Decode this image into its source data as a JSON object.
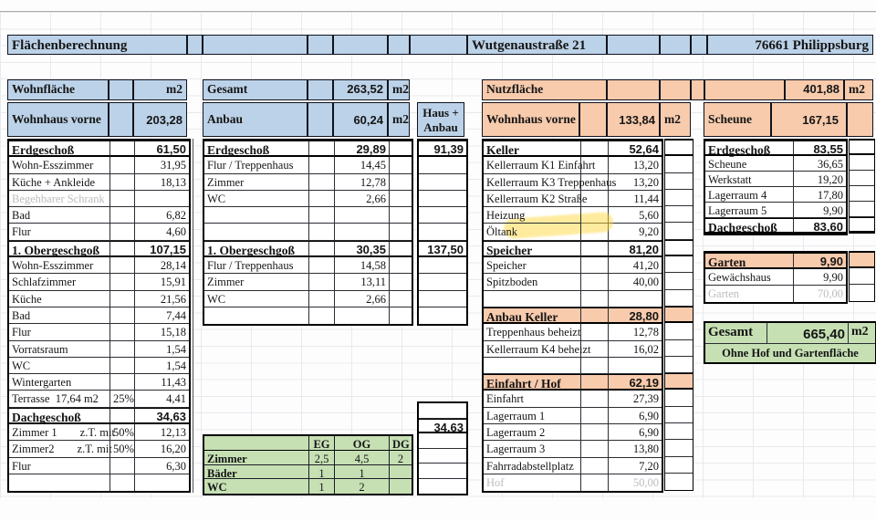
{
  "top": {
    "title": "Flächenberechnung",
    "street": "Wutgenaustraße 21",
    "city": "76661 Philippsburg"
  },
  "wohn": {
    "label": "Wohnfläche",
    "unit": "m2",
    "haus_label": "Wohnhaus vorne",
    "haus_value": "203,28"
  },
  "gesamt_row": {
    "label": "Gesamt",
    "value": "263,52",
    "unit": "m2"
  },
  "anbau": {
    "label": "Anbau",
    "value": "60,24",
    "unit": "m2",
    "haus_anbau": "Haus +\nAnbau"
  },
  "nutz": {
    "label": "Nutzfläche",
    "value": "401,88",
    "unit": "m2",
    "haus_label": "Wohnhaus vorne",
    "haus_value": "133,84",
    "haus_unit": "m2",
    "scheune_label": "Scheune",
    "scheune_value": "167,15"
  },
  "gesamt_box": {
    "label": "Gesamt",
    "value": "665,40",
    "unit": "m2",
    "note": "Ohne Hof und Gartenfläche"
  },
  "colors": {
    "blue": "#bcd2e8",
    "peach": "#f8cbad",
    "green": "#c6e0b4",
    "highlight": "#ffd83c"
  },
  "tables": {
    "left_main": {
      "rows": [
        {
          "t": "header",
          "c": [
            "Erdgeschoß",
            "",
            "61,50"
          ]
        },
        {
          "t": "item",
          "c": [
            "Wohn-Esszimmer",
            "",
            "31,95"
          ]
        },
        {
          "t": "item",
          "c": [
            "Küche + Ankleide",
            "",
            "18,13"
          ]
        },
        {
          "t": "muted",
          "c": [
            "Begehbarer Schrank",
            "",
            ""
          ]
        },
        {
          "t": "item",
          "c": [
            "Bad",
            "",
            "6,82"
          ]
        },
        {
          "t": "item",
          "c": [
            "Flur",
            "",
            "4,60"
          ]
        },
        {
          "t": "header",
          "c": [
            "1. Obergeschgoß",
            "",
            "107,15"
          ]
        },
        {
          "t": "item",
          "c": [
            "Wohn-Esszimmer",
            "",
            "28,14"
          ]
        },
        {
          "t": "item",
          "c": [
            "Schlafzimmer",
            "",
            "15,91"
          ]
        },
        {
          "t": "item",
          "c": [
            "Küche",
            "",
            "21,56"
          ]
        },
        {
          "t": "item",
          "c": [
            "Bad",
            "",
            "7,44"
          ]
        },
        {
          "t": "item",
          "c": [
            "Flur",
            "",
            "15,18"
          ]
        },
        {
          "t": "item",
          "c": [
            "Vorratsraum",
            "",
            "1,54"
          ]
        },
        {
          "t": "item",
          "c": [
            "WC",
            "",
            "1,54"
          ]
        },
        {
          "t": "item",
          "c": [
            "Wintergarten",
            "",
            "11,43"
          ]
        },
        {
          "t": "item",
          "c": [
            "Terrasse  17,64 m2",
            "25%",
            "4,41"
          ]
        },
        {
          "t": "header",
          "c": [
            "Dachgeschoß",
            "",
            "34,63"
          ]
        },
        {
          "t": "item",
          "c": [
            "Zimmer 1        z.T. mit",
            "50%",
            "12,13"
          ]
        },
        {
          "t": "item",
          "c": [
            "Zimmer2        z.T. mit",
            "50%",
            "16,20"
          ]
        },
        {
          "t": "item",
          "c": [
            "Flur",
            "",
            "6,30"
          ]
        },
        {
          "t": "item",
          "c": [
            "",
            "",
            ""
          ]
        }
      ]
    },
    "mid_main": {
      "rows": [
        {
          "t": "header",
          "c": [
            "Erdgeschoß",
            "",
            "29,89",
            ""
          ]
        },
        {
          "t": "item",
          "c": [
            "Flur / Treppenhaus",
            "",
            "14,45",
            ""
          ]
        },
        {
          "t": "item",
          "c": [
            "Zimmer",
            "",
            "12,78",
            ""
          ]
        },
        {
          "t": "item",
          "c": [
            "WC",
            "",
            "2,66",
            ""
          ]
        },
        {
          "t": "item",
          "c": [
            "",
            "",
            "",
            ""
          ]
        },
        {
          "t": "item",
          "c": [
            "",
            "",
            "",
            ""
          ]
        },
        {
          "t": "header",
          "c": [
            "1. Obergeschgoß",
            "",
            "30,35",
            ""
          ]
        },
        {
          "t": "item",
          "c": [
            "Flur / Treppenhaus",
            "",
            "14,58",
            ""
          ]
        },
        {
          "t": "item",
          "c": [
            "Zimmer",
            "",
            "13,11",
            ""
          ]
        },
        {
          "t": "item",
          "c": [
            "WC",
            "",
            "2,66",
            ""
          ]
        },
        {
          "t": "item",
          "c": [
            "",
            "",
            "",
            ""
          ]
        }
      ]
    },
    "haus_anbau_top": {
      "rows": [
        {
          "t": "header",
          "c": [
            "91,39"
          ]
        },
        {
          "t": "item",
          "c": [
            ""
          ]
        },
        {
          "t": "item",
          "c": [
            ""
          ]
        },
        {
          "t": "item",
          "c": [
            ""
          ]
        },
        {
          "t": "item",
          "c": [
            ""
          ]
        },
        {
          "t": "item",
          "c": [
            ""
          ]
        },
        {
          "t": "header",
          "c": [
            "137,50"
          ]
        },
        {
          "t": "item",
          "c": [
            ""
          ]
        },
        {
          "t": "item",
          "c": [
            ""
          ]
        },
        {
          "t": "item",
          "c": [
            ""
          ]
        },
        {
          "t": "item",
          "c": [
            ""
          ]
        }
      ]
    },
    "haus_anbau_bottom": {
      "rows": [
        {
          "t": "item",
          "c": [
            ""
          ]
        },
        {
          "t": "header",
          "c": [
            "34,63"
          ]
        },
        {
          "t": "item",
          "c": [
            ""
          ]
        },
        {
          "t": "item",
          "c": [
            ""
          ]
        },
        {
          "t": "item",
          "c": [
            ""
          ]
        },
        {
          "t": "item",
          "c": [
            ""
          ]
        }
      ]
    },
    "green_counts": {
      "rows": [
        {
          "t": "header",
          "c": [
            "",
            "EG",
            "OG",
            "DG"
          ]
        },
        {
          "t": "item",
          "c": [
            "Zimmer",
            "2,5",
            "4,5",
            "2"
          ]
        },
        {
          "t": "item",
          "c": [
            "Bäder",
            "1",
            "1",
            ""
          ]
        },
        {
          "t": "item",
          "c": [
            "WC",
            "1",
            "2",
            ""
          ]
        }
      ]
    },
    "right_main": {
      "rows": [
        {
          "t": "header",
          "c": [
            "Keller",
            "",
            "52,64"
          ]
        },
        {
          "t": "item",
          "c": [
            "Kellerraum K1 Einfahrt",
            "",
            "13,20"
          ]
        },
        {
          "t": "item",
          "c": [
            "Kellerraum K3 Treppenhaus",
            "",
            "13,20"
          ]
        },
        {
          "t": "item",
          "c": [
            "Kellerraum K2 Straße",
            "",
            "11,44"
          ]
        },
        {
          "t": "item",
          "c": [
            "Heizung",
            "",
            "5,60"
          ]
        },
        {
          "t": "item",
          "c": [
            "Öltank",
            "",
            "9,20"
          ]
        },
        {
          "t": "header",
          "c": [
            "Speicher",
            "",
            "81,20"
          ]
        },
        {
          "t": "item",
          "c": [
            "Speicher",
            "",
            "41,20"
          ]
        },
        {
          "t": "item",
          "c": [
            "Spitzboden",
            "",
            "40,00"
          ]
        },
        {
          "t": "item",
          "c": [
            "",
            "",
            ""
          ]
        },
        {
          "t": "orange",
          "c": [
            "Anbau Keller",
            "",
            "28,80"
          ]
        },
        {
          "t": "item",
          "c": [
            "Treppenhaus beheizt",
            "",
            "12,78"
          ]
        },
        {
          "t": "item",
          "c": [
            "Kellerraum K4 beheizt",
            "",
            "16,02"
          ]
        },
        {
          "t": "item",
          "c": [
            "",
            "",
            ""
          ]
        },
        {
          "t": "orange",
          "c": [
            "Einfahrt / Hof",
            "",
            "62,19"
          ]
        },
        {
          "t": "item",
          "c": [
            "Einfahrt",
            "",
            "27,39"
          ]
        },
        {
          "t": "item",
          "c": [
            "Lagerraum 1",
            "",
            "6,90"
          ]
        },
        {
          "t": "item",
          "c": [
            "Lagerraum 2",
            "",
            "6,90"
          ]
        },
        {
          "t": "item",
          "c": [
            "Lagerraum 3",
            "",
            "13,80"
          ]
        },
        {
          "t": "item",
          "c": [
            "Fahrradabstellplatz",
            "",
            "7,20"
          ]
        },
        {
          "t": "muted",
          "c": [
            "Hof",
            "",
            "50,00"
          ]
        }
      ]
    },
    "strip_right": {
      "rows": [
        {
          "t": "header",
          "c": [
            ""
          ]
        },
        {
          "t": "item",
          "c": [
            ""
          ]
        },
        {
          "t": "item",
          "c": [
            ""
          ]
        },
        {
          "t": "item",
          "c": [
            ""
          ]
        },
        {
          "t": "item",
          "c": [
            ""
          ]
        },
        {
          "t": "item",
          "c": [
            ""
          ]
        },
        {
          "t": "header",
          "c": [
            ""
          ]
        },
        {
          "t": "item",
          "c": [
            ""
          ]
        },
        {
          "t": "item",
          "c": [
            ""
          ]
        },
        {
          "t": "item",
          "c": [
            ""
          ]
        },
        {
          "t": "orange",
          "c": [
            ""
          ]
        },
        {
          "t": "item",
          "c": [
            ""
          ]
        },
        {
          "t": "item",
          "c": [
            ""
          ]
        },
        {
          "t": "item",
          "c": [
            ""
          ]
        },
        {
          "t": "orange",
          "c": [
            ""
          ]
        },
        {
          "t": "item",
          "c": [
            ""
          ]
        },
        {
          "t": "item",
          "c": [
            ""
          ]
        },
        {
          "t": "item",
          "c": [
            ""
          ]
        },
        {
          "t": "item",
          "c": [
            ""
          ]
        },
        {
          "t": "item",
          "c": [
            ""
          ]
        },
        {
          "t": "item",
          "c": [
            ""
          ]
        }
      ]
    },
    "scheune": {
      "rows": [
        {
          "t": "header",
          "c": [
            "Erdgeschoß",
            "83,55"
          ]
        },
        {
          "t": "item",
          "c": [
            "Scheune",
            "36,65"
          ]
        },
        {
          "t": "item",
          "c": [
            "Werkstatt",
            "19,20"
          ]
        },
        {
          "t": "item",
          "c": [
            "Lagerraum 4",
            "17,80"
          ]
        },
        {
          "t": "item",
          "c": [
            "Lagerraum 5",
            "9,90"
          ]
        },
        {
          "t": "header",
          "c": [
            "Dachgeschoß",
            "83,60"
          ]
        }
      ]
    },
    "strip_scheune": {
      "rows": [
        {
          "t": "header",
          "c": [
            ""
          ]
        },
        {
          "t": "item",
          "c": [
            ""
          ]
        },
        {
          "t": "item",
          "c": [
            ""
          ]
        },
        {
          "t": "item",
          "c": [
            ""
          ]
        },
        {
          "t": "item",
          "c": [
            ""
          ]
        },
        {
          "t": "header",
          "c": [
            ""
          ]
        }
      ]
    },
    "garten": {
      "rows": [
        {
          "t": "orange",
          "c": [
            "Garten",
            "9,90"
          ]
        },
        {
          "t": "item",
          "c": [
            "Gewächshaus",
            "9,90"
          ]
        },
        {
          "t": "muted",
          "c": [
            "Garten",
            "70,00"
          ]
        }
      ]
    },
    "strip_garten": {
      "rows": [
        {
          "t": "orange",
          "c": [
            ""
          ]
        },
        {
          "t": "item",
          "c": [
            ""
          ]
        },
        {
          "t": "muted",
          "c": [
            ""
          ]
        }
      ]
    }
  }
}
